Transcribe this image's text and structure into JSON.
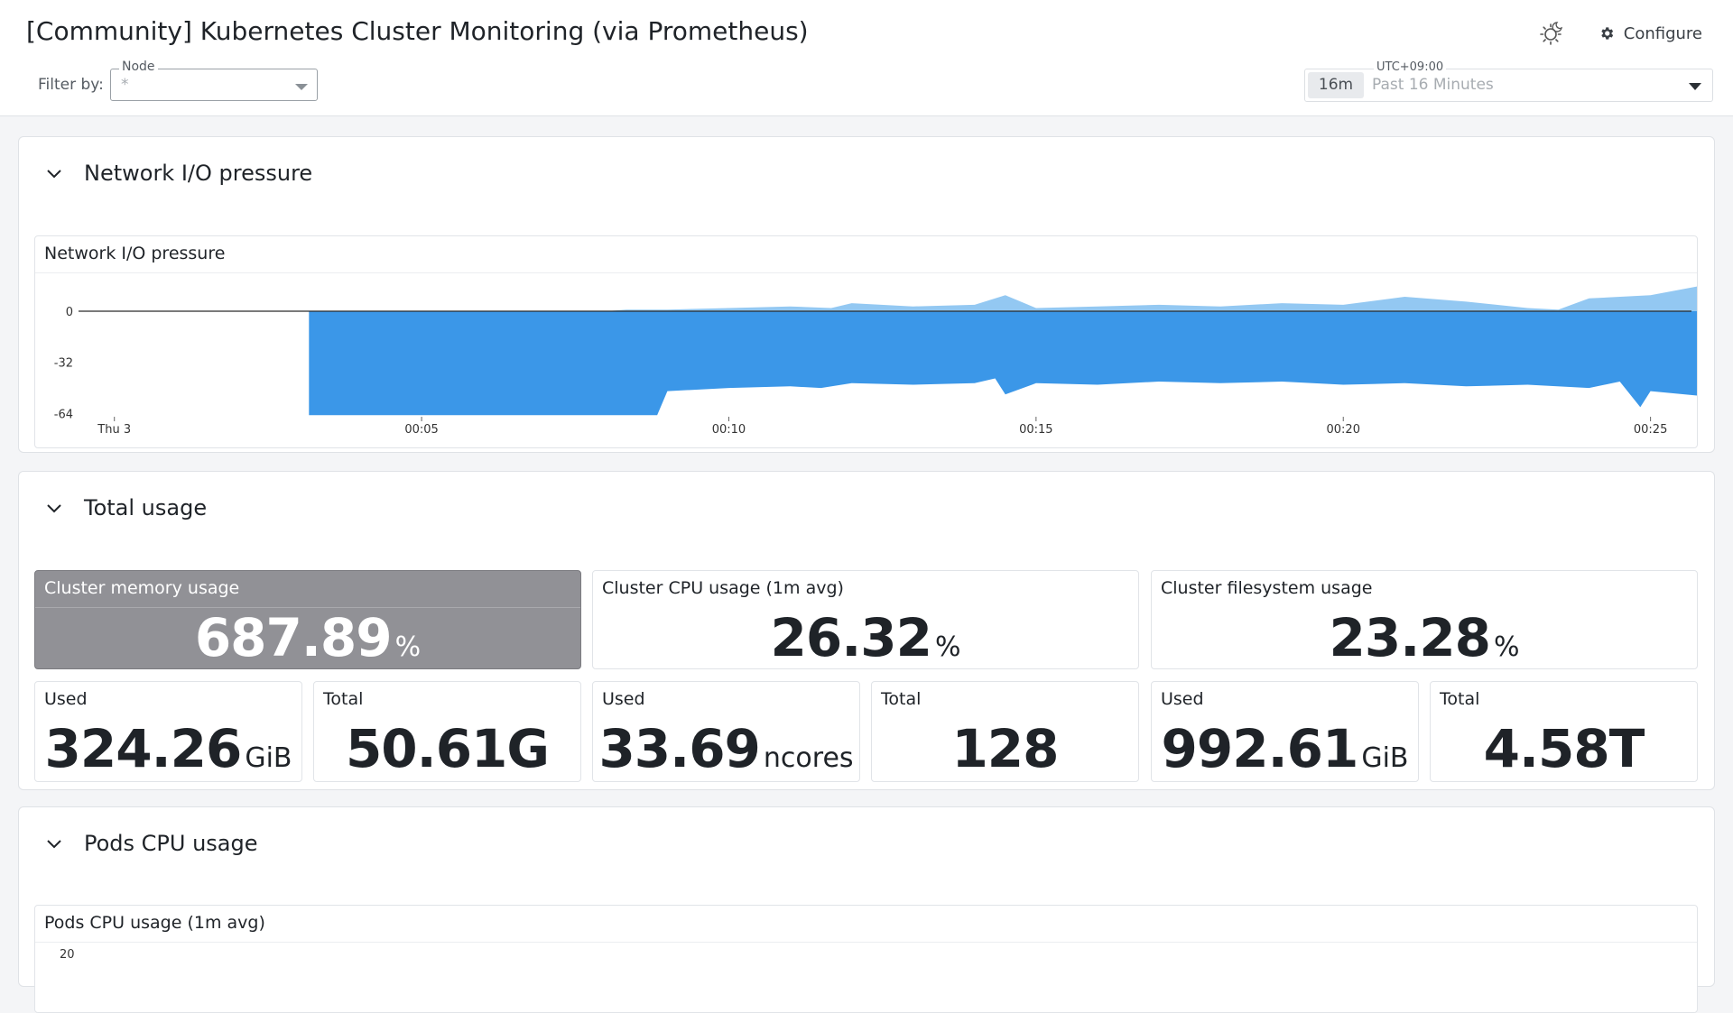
{
  "dashboard": {
    "title": "[Community] Kubernetes Cluster Monitoring (via Prometheus)",
    "configure_label": "Configure",
    "icons": {
      "theme": "sun-moon-icon",
      "configure": "gear-icon",
      "collapse": "chevron-down-icon"
    }
  },
  "filter": {
    "label": "Filter by:",
    "node_legend": "Node",
    "node_value": "*"
  },
  "time": {
    "timezone": "UTC+09:00",
    "badge": "16m",
    "range": "Past 16 Minutes"
  },
  "sections": {
    "network": {
      "title": "Network I/O pressure",
      "panel_title": "Network I/O pressure"
    },
    "usage": {
      "title": "Total usage",
      "memory": {
        "title": "Cluster memory usage",
        "value": "687.89",
        "unit": "%"
      },
      "cpu": {
        "title": "Cluster CPU usage (1m avg)",
        "value": "26.32",
        "unit": "%"
      },
      "fs": {
        "title": "Cluster filesystem usage",
        "value": "23.28",
        "unit": "%"
      },
      "mem_used": {
        "title": "Used",
        "value": "324.26",
        "unit": "GiB"
      },
      "mem_total": {
        "title": "Total",
        "value": "50.61G",
        "unit": ""
      },
      "cpu_used": {
        "title": "Used",
        "value": "33.69",
        "unit": "ncores"
      },
      "cpu_total": {
        "title": "Total",
        "value": "128",
        "unit": ""
      },
      "fs_used": {
        "title": "Used",
        "value": "992.61",
        "unit": "GiB"
      },
      "fs_total": {
        "title": "Total",
        "value": "4.58T",
        "unit": ""
      }
    },
    "pods": {
      "title": "Pods CPU usage",
      "panel_title": "Pods CPU usage (1m avg)",
      "y_top_tick": "20"
    }
  },
  "chart_data": {
    "type": "area",
    "title": "Network I/O pressure",
    "ylim": [
      -66,
      0
    ],
    "y_ticks": [
      0,
      -32,
      -64
    ],
    "x_range": [
      "23:59:25",
      "00:25:40"
    ],
    "x_ticks": [
      {
        "t": "00:00",
        "label": "Thu 3"
      },
      {
        "t": "00:05",
        "label": "00:05"
      },
      {
        "t": "00:10",
        "label": "00:10"
      },
      {
        "t": "00:15",
        "label": "00:15"
      },
      {
        "t": "00:20",
        "label": "00:20"
      },
      {
        "t": "00:25",
        "label": "00:25"
      }
    ],
    "zero_line": true,
    "series": [
      {
        "color": "#3b97e8",
        "x": [
          "00:03:10",
          "00:08:50",
          "00:09:00",
          "00:10:00",
          "00:11:00",
          "00:11:30",
          "00:12:00",
          "00:13:00",
          "00:14:00",
          "00:14:20",
          "00:14:30",
          "00:15:00",
          "00:16:00",
          "00:17:00",
          "00:18:00",
          "00:19:00",
          "00:20:00",
          "00:21:00",
          "00:22:00",
          "00:23:00",
          "00:24:00",
          "00:24:30",
          "00:24:50",
          "00:25:00",
          "00:25:50"
        ],
        "values": [
          -65,
          -65,
          -50,
          -48,
          -47,
          -48,
          -45,
          -46,
          -45,
          -42,
          -52,
          -45,
          -46,
          -44,
          -45,
          -44,
          -46,
          -45,
          -47,
          -46,
          -48,
          -44,
          -60,
          -50,
          -53
        ]
      },
      {
        "color": "#93c8f2",
        "x": [
          "00:03:10",
          "00:08:00",
          "00:08:20",
          "00:08:40",
          "00:09:00",
          "00:10:00",
          "00:11:00",
          "00:11:40",
          "00:12:00",
          "00:13:00",
          "00:14:00",
          "00:14:30",
          "00:15:00",
          "00:16:00",
          "00:17:00",
          "00:18:00",
          "00:19:00",
          "00:20:00",
          "00:21:00",
          "00:22:00",
          "00:23:00",
          "00:23:30",
          "00:24:00",
          "00:25:00",
          "00:25:50"
        ],
        "values": [
          0,
          0,
          1,
          1,
          1,
          2,
          3,
          2,
          5,
          3,
          4,
          10,
          2,
          3,
          4,
          3,
          5,
          4,
          9,
          6,
          2,
          1,
          8,
          10,
          16
        ]
      }
    ]
  }
}
